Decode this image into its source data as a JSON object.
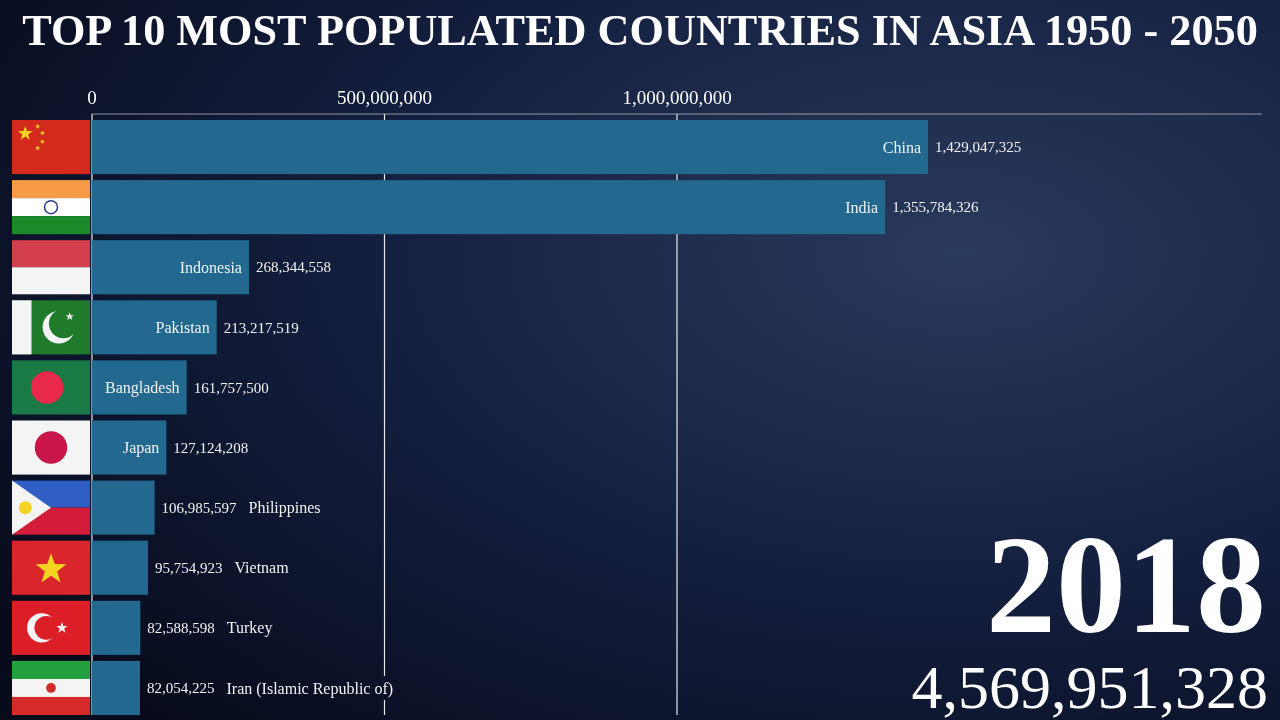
{
  "chart_data": {
    "type": "bar",
    "orientation": "horizontal",
    "title": "TOP 10 MOST POPULATED COUNTRIES IN ASIA 1950 - 2050",
    "categories": [
      "China",
      "India",
      "Indonesia",
      "Pakistan",
      "Bangladesh",
      "Japan",
      "Philippines",
      "Vietnam",
      "Turkey",
      "Iran (Islamic Republic of)"
    ],
    "values": [
      1429047325,
      1355784326,
      268344558,
      213217519,
      161757500,
      127124208,
      106985597,
      95754923,
      82588598,
      82054225
    ],
    "value_labels": [
      "1,429,047,325",
      "1,355,784,326",
      "268,344,558",
      "213,217,519",
      "161,757,500",
      "127,124,208",
      "106,985,597",
      "95,754,923",
      "82,588,598",
      "82,054,225"
    ],
    "color": "#22688f",
    "xlim": [
      0,
      2000000000
    ],
    "xticks": [
      0,
      {
        "value": 500000000,
        "label": "500,000,000"
      },
      {
        "value": 1000000000,
        "label": "1,000,000,000"
      }
    ],
    "grid": "x",
    "annotations": [
      "2018",
      "4,569,951,328"
    ]
  }
}
